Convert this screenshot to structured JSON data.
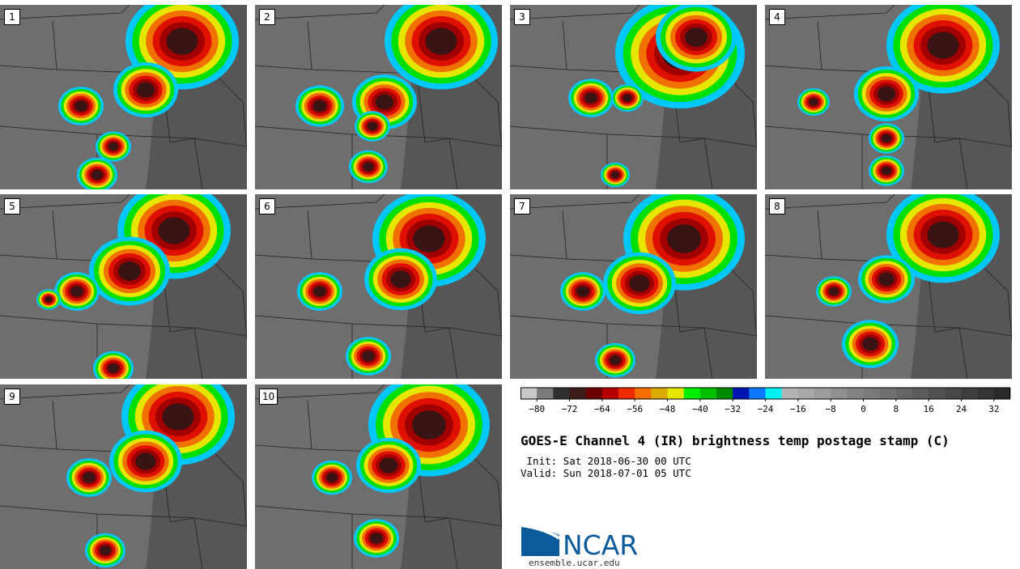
{
  "panels": [
    {
      "label": "1"
    },
    {
      "label": "2"
    },
    {
      "label": "3"
    },
    {
      "label": "4"
    },
    {
      "label": "5"
    },
    {
      "label": "6"
    },
    {
      "label": "7"
    },
    {
      "label": "8"
    },
    {
      "label": "9"
    },
    {
      "label": "10"
    }
  ],
  "colorbar": {
    "colors": [
      "#c8c8c8",
      "#7a7a7a",
      "#303030",
      "#3d1a1a",
      "#6b0000",
      "#b40000",
      "#ee2a00",
      "#f56e00",
      "#dcaa00",
      "#e6e600",
      "#00ef00",
      "#00c000",
      "#008a00",
      "#0014b4",
      "#0a78ff",
      "#00f0f0",
      "#b4b4b4",
      "#a8a8a8",
      "#9c9c9c",
      "#909090",
      "#848484",
      "#7a7a7a",
      "#707070",
      "#666666",
      "#5c5c5c",
      "#525252",
      "#484848",
      "#3e3e3e",
      "#343434",
      "#2a2a2a"
    ],
    "ticks": [
      "−80",
      "−72",
      "−64",
      "−56",
      "−48",
      "−40",
      "−32",
      "−24",
      "−16",
      "−8",
      "0",
      "8",
      "16",
      "24",
      "32"
    ]
  },
  "title": "GOES-E Channel 4 (IR) brightness temp postage stamp (C)",
  "init_line": " Init: Sat 2018-06-30 00 UTC",
  "valid_line": "Valid: Sun 2018-07-01 05 UTC",
  "logo": {
    "text": "NCAR",
    "url": "ensemble.ucar.edu",
    "color": "#0a5a9c"
  }
}
